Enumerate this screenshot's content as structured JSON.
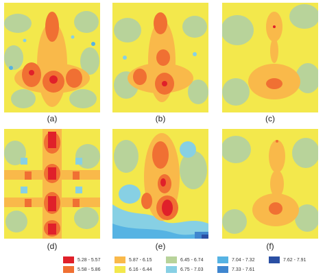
{
  "panels": [
    {
      "label": "(a)"
    },
    {
      "label": "(b)"
    },
    {
      "label": "(c)"
    },
    {
      "label": "(d)"
    },
    {
      "label": "(e)"
    },
    {
      "label": "(f)"
    }
  ],
  "legend": [
    {
      "range": "5.28 - 5.57",
      "color": "#e0202a"
    },
    {
      "range": "5.58 - 5.86",
      "color": "#f07033"
    },
    {
      "range": "5.87 - 6.15",
      "color": "#f9b94a"
    },
    {
      "range": "6.16 - 6.44",
      "color": "#f3e84c"
    },
    {
      "range": "6.45 - 6.74",
      "color": "#b8d39a"
    },
    {
      "range": "6.75 - 7.03",
      "color": "#87d0e4"
    },
    {
      "range": "7.04 - 7.32",
      "color": "#56b3e3"
    },
    {
      "range": "7.33 - 7.61",
      "color": "#3f86cf"
    },
    {
      "range": "7.62 - 7.91",
      "color": "#2a4fa3"
    }
  ]
}
